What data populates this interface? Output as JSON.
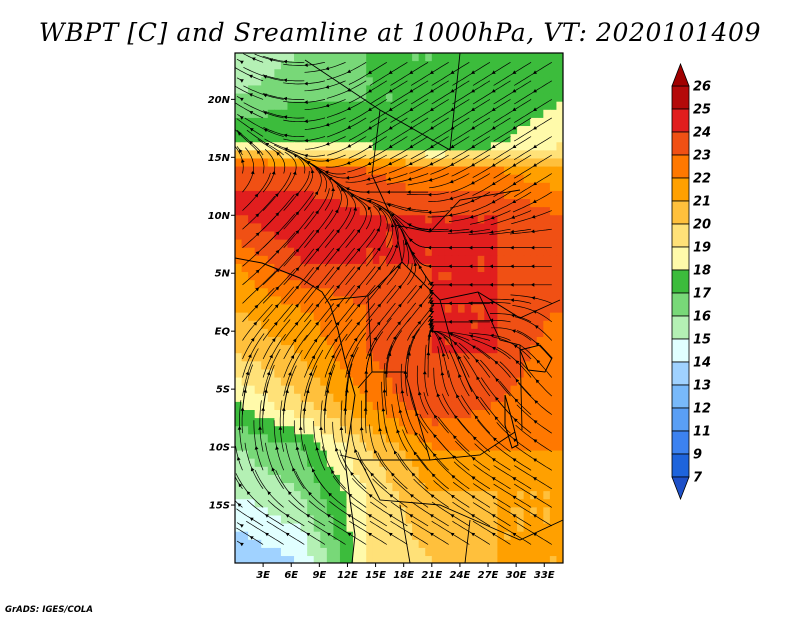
{
  "chart_data": {
    "type": "heatmap",
    "title": "WBPT [C] and Sreamline at 1000hPa, VT: 2020101409",
    "variable": "WBPT [C]",
    "overlay": "Sreamline",
    "level": "1000hPa",
    "valid_time": "2020101409",
    "xlabel": "",
    "ylabel": "",
    "lon_range": [
      0,
      35
    ],
    "lat_range": [
      -20,
      24
    ],
    "x_ticks": [
      {
        "value": 3,
        "label": "3E"
      },
      {
        "value": 6,
        "label": "6E"
      },
      {
        "value": 9,
        "label": "9E"
      },
      {
        "value": 12,
        "label": "12E"
      },
      {
        "value": 15,
        "label": "15E"
      },
      {
        "value": 18,
        "label": "18E"
      },
      {
        "value": 21,
        "label": "21E"
      },
      {
        "value": 24,
        "label": "24E"
      },
      {
        "value": 27,
        "label": "27E"
      },
      {
        "value": 30,
        "label": "30E"
      },
      {
        "value": 33,
        "label": "33E"
      }
    ],
    "y_ticks": [
      {
        "value": 20,
        "label": "20N"
      },
      {
        "value": 15,
        "label": "15N"
      },
      {
        "value": 10,
        "label": "10N"
      },
      {
        "value": 5,
        "label": "5N"
      },
      {
        "value": 0,
        "label": "EQ"
      },
      {
        "value": -5,
        "label": "5S"
      },
      {
        "value": -10,
        "label": "10S"
      },
      {
        "value": -15,
        "label": "15S"
      }
    ],
    "colorbar": {
      "levels": [
        7,
        9,
        11,
        12,
        13,
        14,
        15,
        16,
        17,
        18,
        19,
        20,
        21,
        22,
        23,
        24,
        25,
        26
      ],
      "colors": [
        "#1e64dc",
        "#3c82f0",
        "#5a9ff5",
        "#78b9fa",
        "#a0d2ff",
        "#e1ffff",
        "#b4f0b4",
        "#78d878",
        "#3cbc3c",
        "#fffaaa",
        "#ffe178",
        "#ffc03c",
        "#ffa000",
        "#ff7800",
        "#f05014",
        "#e11e1e",
        "#b40a0a"
      ],
      "under_color": "#1e50c8",
      "over_color": "#a00000"
    },
    "field": {
      "lat": [
        24,
        20,
        16,
        14,
        10,
        6,
        2,
        -2,
        -6,
        -10,
        -14,
        -20
      ],
      "lon": [
        0,
        7,
        14,
        21,
        28,
        35
      ],
      "values": [
        [
          15,
          16,
          17,
          17,
          17,
          17
        ],
        [
          16,
          17,
          17,
          17,
          17,
          18
        ],
        [
          18,
          18,
          18,
          17,
          18,
          19
        ],
        [
          24,
          23,
          23,
          22,
          22,
          21
        ],
        [
          24,
          25,
          24,
          24,
          24,
          23
        ],
        [
          22,
          24,
          24,
          24,
          24,
          23
        ],
        [
          21,
          22,
          23,
          24,
          24,
          23
        ],
        [
          20,
          21,
          23,
          24,
          24,
          22
        ],
        [
          18,
          20,
          22,
          24,
          23,
          22
        ],
        [
          16,
          17,
          20,
          22,
          22,
          22
        ],
        [
          15,
          16,
          19,
          21,
          21,
          21
        ],
        [
          13,
          14,
          19,
          20,
          21,
          21
        ]
      ]
    },
    "streamlines": {
      "description": "flow convergence into the central basin",
      "wind_uv": {
        "lat": [
          24,
          20,
          16,
          12,
          8,
          4,
          0,
          -4,
          -8,
          -12,
          -16,
          -20
        ],
        "lon": [
          0,
          7,
          14,
          21,
          28,
          35
        ],
        "u": [
          [
            -2,
            -2,
            -2,
            -2,
            -2,
            -2
          ],
          [
            -2,
            -2,
            -2,
            -2,
            -2,
            -2
          ],
          [
            -1,
            -1,
            -2,
            -2,
            -2,
            -2
          ],
          [
            1,
            1,
            -1,
            -1,
            -2,
            -2
          ],
          [
            3,
            2,
            1,
            -1,
            -1,
            -2
          ],
          [
            3,
            2,
            1,
            0,
            -1,
            -1
          ],
          [
            2,
            2,
            1,
            0,
            -1,
            -1
          ],
          [
            1,
            1,
            0,
            0,
            -1,
            -1
          ],
          [
            0,
            0,
            0,
            -1,
            -1,
            -2
          ],
          [
            -1,
            -1,
            -1,
            -1,
            -2,
            -2
          ],
          [
            -2,
            -2,
            -2,
            -2,
            -2,
            -2
          ],
          [
            -2,
            -2,
            -2,
            -2,
            -2,
            -2
          ]
        ],
        "v": [
          [
            1,
            0,
            -1,
            -1,
            -1,
            -1
          ],
          [
            1,
            0,
            -1,
            -1,
            -1,
            -1
          ],
          [
            1,
            0,
            -1,
            -1,
            -1,
            -1
          ],
          [
            1,
            1,
            0,
            0,
            -1,
            -1
          ],
          [
            2,
            2,
            1,
            0,
            0,
            0
          ],
          [
            2,
            2,
            1,
            0,
            0,
            0
          ],
          [
            2,
            2,
            1,
            0,
            0,
            1
          ],
          [
            3,
            2,
            1,
            1,
            1,
            1
          ],
          [
            3,
            2,
            2,
            1,
            1,
            1
          ],
          [
            2,
            2,
            1,
            1,
            1,
            1
          ],
          [
            1,
            1,
            1,
            1,
            1,
            1
          ],
          [
            1,
            1,
            1,
            1,
            1,
            1
          ]
        ]
      }
    },
    "credit": "GrADS: IGES/COLA"
  }
}
